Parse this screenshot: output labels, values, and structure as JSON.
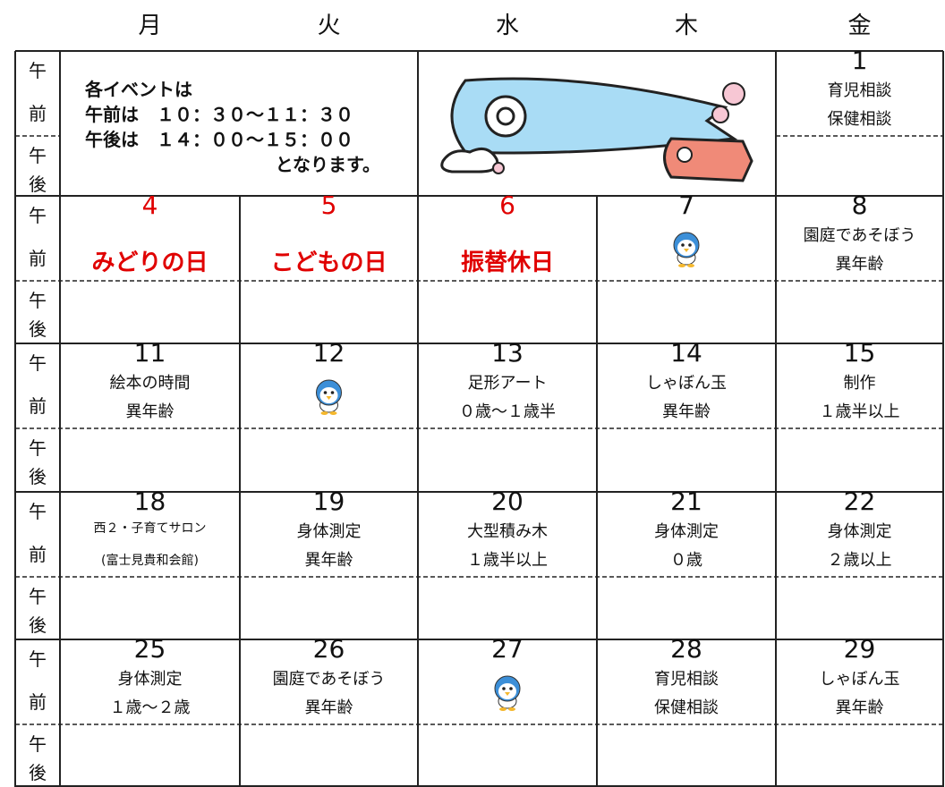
{
  "header": {
    "days": [
      "月",
      "火",
      "水",
      "木",
      "金"
    ]
  },
  "row_labels": {
    "am": [
      "午",
      "前"
    ],
    "pm": [
      "午",
      "後"
    ]
  },
  "note": {
    "lines": [
      "各イベントは",
      "午前は　１０：３０～１１：３０",
      "午後は　１４：００～１５：００",
      "となります。"
    ]
  },
  "weeks": [
    {
      "days": [
        {
          "number": 1,
          "lines": [
            "育児相談",
            "保健相談"
          ]
        }
      ]
    },
    {
      "days": [
        {
          "number": 4,
          "lines": [
            "みどりの日"
          ],
          "color": "#e00000"
        },
        {
          "number": 5,
          "lines": [
            "こどもの日"
          ],
          "color": "#e00000"
        },
        {
          "number": 6,
          "lines": [
            "振替休日"
          ],
          "color": "#e00000"
        },
        {
          "number": 7,
          "lines": [],
          "mascot": true
        },
        {
          "number": 8,
          "lines": [
            "園庭であそぼう",
            "異年齢"
          ]
        }
      ]
    },
    {
      "days": [
        {
          "number": 11,
          "lines": [
            "絵本の時間",
            "異年齢"
          ]
        },
        {
          "number": 12,
          "lines": [],
          "mascot": true
        },
        {
          "number": 13,
          "lines": [
            "足形アート",
            "０歳～１歳半"
          ]
        },
        {
          "number": 14,
          "lines": [
            "しゃぼん玉",
            "異年齢"
          ]
        },
        {
          "number": 15,
          "lines": [
            "制作",
            "１歳半以上"
          ]
        }
      ]
    },
    {
      "days": [
        {
          "number": 18,
          "lines": [
            "西２・子育てサロン",
            "(富士見貴和会館)"
          ],
          "small": true
        },
        {
          "number": 19,
          "lines": [
            "身体測定",
            "異年齢"
          ]
        },
        {
          "number": 20,
          "lines": [
            "大型積み木",
            "１歳半以上"
          ]
        },
        {
          "number": 21,
          "lines": [
            "身体測定",
            "０歳"
          ]
        },
        {
          "number": 22,
          "lines": [
            "身体測定",
            "２歳以上"
          ]
        }
      ]
    },
    {
      "days": [
        {
          "number": 25,
          "lines": [
            "身体測定",
            "１歳～２歳"
          ]
        },
        {
          "number": 26,
          "lines": [
            "園庭であそぼう",
            "異年齢"
          ]
        },
        {
          "number": 27,
          "lines": [],
          "mascot": true
        },
        {
          "number": 28,
          "lines": [
            "育児相談",
            "保健相談"
          ]
        },
        {
          "number": 29,
          "lines": [
            "しゃぼん玉",
            "異年齢"
          ]
        }
      ]
    }
  ]
}
